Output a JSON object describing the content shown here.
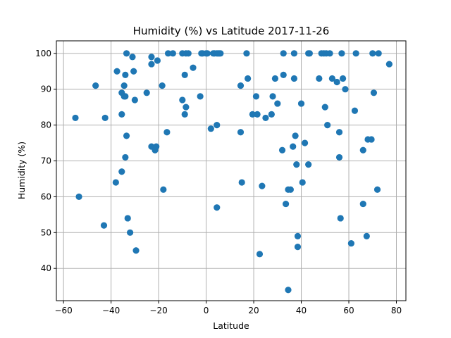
{
  "chart_data": {
    "type": "scatter",
    "title": "Humidity (%) vs Latitude 2017-11-26",
    "xlabel": "Latitude",
    "ylabel": "Humidity (%)",
    "xlim": [
      -63,
      84
    ],
    "ylim": [
      31,
      103.5
    ],
    "xticks": [
      -60,
      -40,
      -20,
      0,
      20,
      40,
      60,
      80
    ],
    "yticks": [
      40,
      50,
      60,
      70,
      80,
      90,
      100
    ],
    "grid": true,
    "marker_color": "#1f77b4",
    "points": [
      [
        -55,
        82
      ],
      [
        -53.5,
        60
      ],
      [
        -46.5,
        91
      ],
      [
        -43,
        52
      ],
      [
        -42.5,
        82
      ],
      [
        -38,
        64
      ],
      [
        -37.5,
        95
      ],
      [
        -35.5,
        89
      ],
      [
        -35.5,
        83
      ],
      [
        -35.5,
        67
      ],
      [
        -34.5,
        91
      ],
      [
        -34.5,
        88
      ],
      [
        -34,
        88
      ],
      [
        -34,
        94
      ],
      [
        -34,
        71
      ],
      [
        -33.5,
        100
      ],
      [
        -33.5,
        77
      ],
      [
        -33,
        54
      ],
      [
        -32,
        50
      ],
      [
        -31,
        99
      ],
      [
        -30.5,
        95
      ],
      [
        -30,
        87
      ],
      [
        -29.5,
        45
      ],
      [
        -25,
        89
      ],
      [
        -23,
        99
      ],
      [
        -23,
        97
      ],
      [
        -23,
        74
      ],
      [
        -21.5,
        73
      ],
      [
        -21,
        74
      ],
      [
        -20.5,
        98
      ],
      [
        -18.5,
        91
      ],
      [
        -18,
        62
      ],
      [
        -16.5,
        78
      ],
      [
        -16,
        100
      ],
      [
        -14,
        100
      ],
      [
        -10,
        87
      ],
      [
        -10,
        100
      ],
      [
        -9,
        94
      ],
      [
        -9,
        83
      ],
      [
        -8.5,
        85
      ],
      [
        -8.5,
        100
      ],
      [
        -7.5,
        100
      ],
      [
        -5.5,
        96
      ],
      [
        -2.5,
        88
      ],
      [
        -2,
        100
      ],
      [
        -1.5,
        100
      ],
      [
        0,
        100
      ],
      [
        0.5,
        100
      ],
      [
        2,
        79
      ],
      [
        3,
        100
      ],
      [
        3.5,
        100
      ],
      [
        4.5,
        100
      ],
      [
        4.5,
        57
      ],
      [
        4.5,
        80
      ],
      [
        5,
        100
      ],
      [
        5.5,
        100
      ],
      [
        6,
        100
      ],
      [
        14.5,
        91
      ],
      [
        14.5,
        78
      ],
      [
        15,
        64
      ],
      [
        17,
        100
      ],
      [
        17.5,
        93
      ],
      [
        19.5,
        83
      ],
      [
        21,
        88
      ],
      [
        21.5,
        83
      ],
      [
        22.5,
        44
      ],
      [
        23.5,
        63
      ],
      [
        25,
        82
      ],
      [
        27.5,
        83
      ],
      [
        28,
        88
      ],
      [
        29,
        93
      ],
      [
        30,
        86
      ],
      [
        32,
        73
      ],
      [
        32.5,
        94
      ],
      [
        32.5,
        100
      ],
      [
        33.5,
        58
      ],
      [
        34.5,
        34
      ],
      [
        34.5,
        62
      ],
      [
        35.5,
        62
      ],
      [
        36.5,
        74
      ],
      [
        37,
        100
      ],
      [
        37,
        93
      ],
      [
        37.5,
        77
      ],
      [
        38,
        69
      ],
      [
        38.5,
        46
      ],
      [
        38.5,
        49
      ],
      [
        40,
        86
      ],
      [
        40.5,
        64
      ],
      [
        41.5,
        75
      ],
      [
        43,
        69
      ],
      [
        43,
        100
      ],
      [
        43.5,
        100
      ],
      [
        47.5,
        93
      ],
      [
        48.5,
        100
      ],
      [
        49.5,
        100
      ],
      [
        50,
        85
      ],
      [
        50.5,
        100
      ],
      [
        51,
        80
      ],
      [
        52,
        100
      ],
      [
        53,
        93
      ],
      [
        55,
        92
      ],
      [
        56,
        78
      ],
      [
        56,
        71
      ],
      [
        56.5,
        54
      ],
      [
        57,
        100
      ],
      [
        57.5,
        93
      ],
      [
        58.5,
        90
      ],
      [
        61,
        47
      ],
      [
        62.5,
        84
      ],
      [
        63,
        100
      ],
      [
        66,
        73
      ],
      [
        66,
        58
      ],
      [
        67.5,
        49
      ],
      [
        68,
        76
      ],
      [
        69.5,
        76
      ],
      [
        70,
        100
      ],
      [
        70.5,
        89
      ],
      [
        72,
        62
      ],
      [
        72.5,
        100
      ],
      [
        77,
        97
      ]
    ]
  }
}
